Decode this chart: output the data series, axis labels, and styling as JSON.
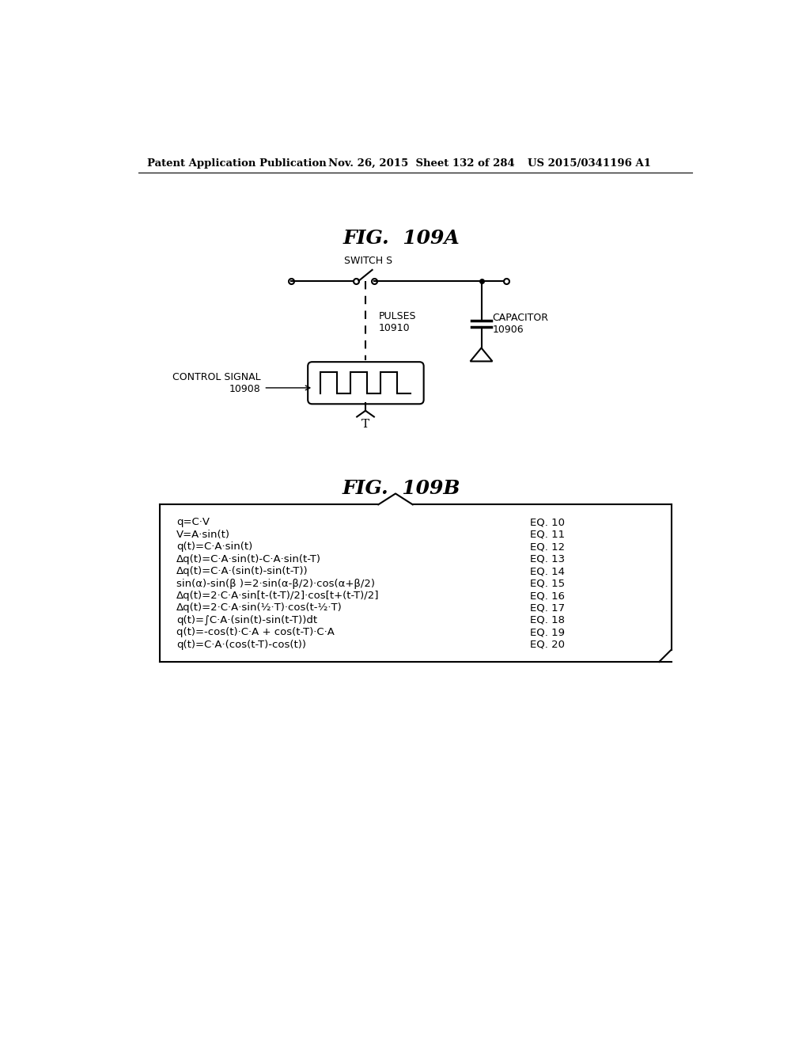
{
  "page_header_left": "Patent Application Publication",
  "page_header_mid": "Nov. 26, 2015  Sheet 132 of 284",
  "page_header_right": "US 2015/0341196 A1",
  "fig_a_title": "FIG.  109A",
  "fig_b_title": "FIG.  109B",
  "background_color": "#ffffff",
  "text_color": "#000000",
  "equations": [
    {
      "left": "q=C·V",
      "right": "EQ. 10"
    },
    {
      "left": "V=A·sin(t)",
      "right": "EQ. 11"
    },
    {
      "left": "q(t)=C·A·sin(t)",
      "right": "EQ. 12"
    },
    {
      "left": "Δq(t)=C·A·sin(t)-C·A·sin(t-T)",
      "right": "EQ. 13"
    },
    {
      "left": "Δq(t)=C·A·(sin(t)-sin(t-T))",
      "right": "EQ. 14"
    },
    {
      "left": "sin(α)-sin(β )=2·sin(α-β/2)·cos(α+β/2)",
      "right": "EQ. 15"
    },
    {
      "left": "Δq(t)=2·C·A·sin[t-(t-T)/2]·cos[t+(t-T)/2]",
      "right": "EQ. 16"
    },
    {
      "left": "Δq(t)=2·C·A·sin(½·T)·cos(t-½·T)",
      "right": "EQ. 17"
    },
    {
      "left": "q(t)=∫C·A·(sin(t)-sin(t-T))dt",
      "right": "EQ. 18"
    },
    {
      "left": "q(t)=-cos(t)·C·A + cos(t-T)·C·A",
      "right": "EQ. 19"
    },
    {
      "left": "q(t)=C·A·(cos(t-T)-cos(t))",
      "right": "EQ. 20"
    }
  ]
}
